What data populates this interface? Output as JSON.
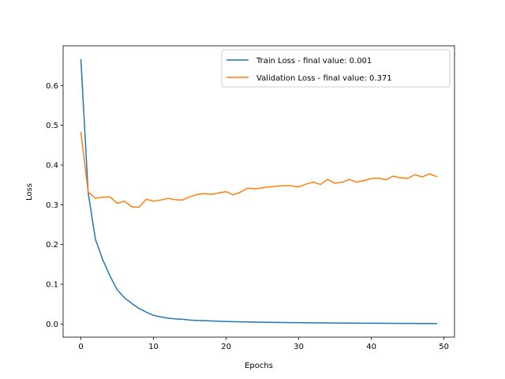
{
  "chart_data": {
    "type": "line",
    "title": "",
    "xlabel": "Epochs",
    "ylabel": "Loss",
    "xlim": [
      -2.45,
      51.45
    ],
    "ylim": [
      -0.033,
      0.7
    ],
    "xticks": [
      0,
      10,
      20,
      30,
      40,
      50
    ],
    "yticks": [
      0.0,
      0.1,
      0.2,
      0.3,
      0.4,
      0.5,
      0.6
    ],
    "grid": false,
    "legend_position": "upper-right",
    "series": [
      {
        "name": "Train Loss - final value: 0.001",
        "color": "#1f77b4",
        "x": [
          0,
          1,
          2,
          3,
          4,
          5,
          6,
          7,
          8,
          9,
          10,
          11,
          12,
          13,
          14,
          15,
          16,
          17,
          18,
          19,
          20,
          21,
          22,
          23,
          24,
          25,
          26,
          27,
          28,
          29,
          30,
          31,
          32,
          33,
          34,
          35,
          36,
          37,
          38,
          39,
          40,
          41,
          42,
          43,
          44,
          45,
          46,
          47,
          48,
          49
        ],
        "values": [
          0.665,
          0.33,
          0.213,
          0.162,
          0.121,
          0.086,
          0.066,
          0.052,
          0.039,
          0.03,
          0.022,
          0.018,
          0.015,
          0.013,
          0.012,
          0.01,
          0.009,
          0.0085,
          0.0078,
          0.007,
          0.0064,
          0.006,
          0.0056,
          0.0052,
          0.0048,
          0.0045,
          0.0042,
          0.004,
          0.0038,
          0.0036,
          0.0034,
          0.0032,
          0.003,
          0.0029,
          0.0027,
          0.0026,
          0.0024,
          0.0023,
          0.0022,
          0.0021,
          0.002,
          0.0019,
          0.0018,
          0.0017,
          0.0016,
          0.0015,
          0.0014,
          0.0013,
          0.0012,
          0.001
        ]
      },
      {
        "name": "Validation Loss - final value: 0.371",
        "color": "#ff7f0e",
        "x": [
          0,
          1,
          2,
          3,
          4,
          5,
          6,
          7,
          8,
          9,
          10,
          11,
          12,
          13,
          14,
          15,
          16,
          17,
          18,
          19,
          20,
          21,
          22,
          23,
          24,
          25,
          26,
          27,
          28,
          29,
          30,
          31,
          32,
          33,
          34,
          35,
          36,
          37,
          38,
          39,
          40,
          41,
          42,
          43,
          44,
          45,
          46,
          47,
          48,
          49
        ],
        "values": [
          0.482,
          0.332,
          0.316,
          0.319,
          0.32,
          0.304,
          0.309,
          0.295,
          0.294,
          0.314,
          0.309,
          0.312,
          0.316,
          0.313,
          0.312,
          0.32,
          0.326,
          0.328,
          0.326,
          0.33,
          0.333,
          0.325,
          0.332,
          0.342,
          0.34,
          0.343,
          0.345,
          0.347,
          0.348,
          0.348,
          0.345,
          0.352,
          0.357,
          0.351,
          0.364,
          0.354,
          0.357,
          0.364,
          0.357,
          0.361,
          0.366,
          0.367,
          0.363,
          0.372,
          0.368,
          0.366,
          0.376,
          0.37,
          0.378,
          0.371
        ]
      }
    ]
  }
}
